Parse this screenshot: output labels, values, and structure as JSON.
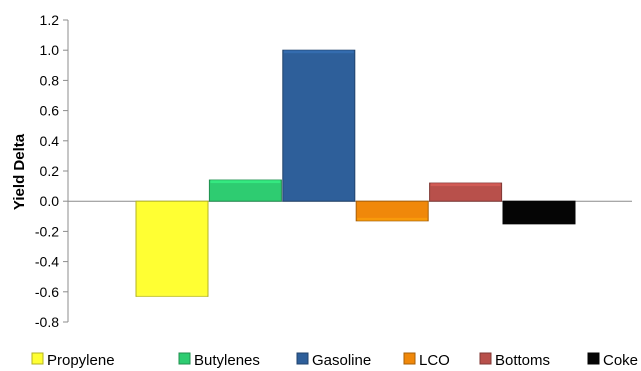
{
  "chart_data": {
    "type": "bar",
    "categories": [
      "Propylene",
      "Butylenes",
      "Gasoline",
      "LCO",
      "Bottoms",
      "Coke"
    ],
    "values": [
      -0.63,
      0.14,
      1.0,
      -0.13,
      0.12,
      -0.15
    ],
    "colors": [
      "#ffff33",
      "#2ecc71",
      "#2e5f9a",
      "#f0880a",
      "#b8504b",
      "#050505"
    ],
    "title": "",
    "xlabel": "",
    "ylabel": "Yield Delta",
    "ylim": [
      -0.8,
      1.2
    ],
    "yticks": [
      "-0.8",
      "-0.6",
      "-0.4",
      "-0.2",
      "0.0",
      "0.2",
      "0.4",
      "0.6",
      "0.8",
      "1.0",
      "1.2"
    ],
    "grid": false,
    "legend_position": "bottom"
  }
}
